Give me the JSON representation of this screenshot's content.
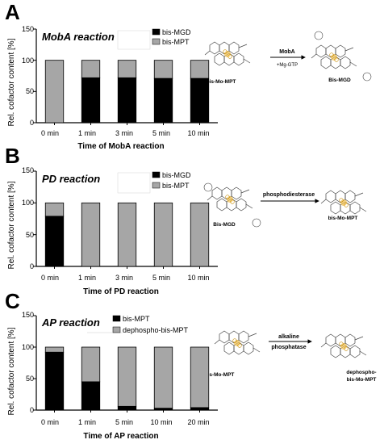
{
  "colors": {
    "bar_dark": "#000000",
    "bar_light": "#a6a6a6",
    "axis": "#000000"
  },
  "y_axis_label": "Rel. cofactor content [%]",
  "chart_data": [
    {
      "letter": "A",
      "type": "bar",
      "stacked": true,
      "title": "MobA reaction",
      "xlabel": "Time of MobA reaction",
      "ylabel": "Rel. cofactor content [%]",
      "ylim": [
        0,
        150
      ],
      "yticks": [
        "0",
        "50",
        "100",
        "150"
      ],
      "legend_position": "top-right",
      "categories": [
        "0 min",
        "1 min",
        "3 min",
        "5 min",
        "10 min"
      ],
      "series": [
        {
          "name": "bis-MGD",
          "values": [
            0,
            72,
            72,
            71,
            71
          ]
        },
        {
          "name": "bis-MPT",
          "values": [
            100,
            28,
            28,
            29,
            29
          ]
        }
      ]
    },
    {
      "letter": "B",
      "type": "bar",
      "stacked": true,
      "title": "PD reaction",
      "xlabel": "Time of PD reaction",
      "ylabel": "Rel. cofactor content [%]",
      "ylim": [
        0,
        150
      ],
      "yticks": [
        "0",
        "50",
        "100",
        "150"
      ],
      "legend_position": "top-right",
      "categories": [
        "0 min",
        "1 min",
        "3 min",
        "5 min",
        "10 min"
      ],
      "series": [
        {
          "name": "bis-MGD",
          "values": [
            79,
            0,
            0,
            0,
            0
          ]
        },
        {
          "name": "bis-MPT",
          "values": [
            21,
            100,
            100,
            100,
            100
          ]
        }
      ]
    },
    {
      "letter": "C",
      "type": "bar",
      "stacked": true,
      "title": "AP reaction",
      "xlabel": "Time of AP reaction",
      "ylabel": "Rel. cofactor content [%]",
      "ylim": [
        0,
        150
      ],
      "yticks": [
        "0",
        "50",
        "100",
        "150"
      ],
      "legend_position": "top-right",
      "categories": [
        "0 min",
        "1 min",
        "5 min",
        "10 min",
        "20 min"
      ],
      "series": [
        {
          "name": "bis-MPT",
          "values": [
            92,
            45,
            6,
            3,
            4
          ]
        },
        {
          "name": "dephospho-bis-MPT",
          "values": [
            8,
            55,
            94,
            97,
            96
          ]
        }
      ]
    }
  ],
  "schemes": [
    {
      "left": "bis-Mo-MPT",
      "arrow_label": "MobA",
      "arrow_sub": "+Mg-GTP",
      "right": "Bis-MGD"
    },
    {
      "left": "Bis-MGD",
      "arrow_label": "phosphodiesterase",
      "arrow_sub": "",
      "right": "bis-Mo-MPT"
    },
    {
      "left": "bis-Mo-MPT",
      "arrow_label": "alkaline",
      "arrow_sub": "phosphatase",
      "right": "dephospho-",
      "right2": "bis-Mo-MPT"
    }
  ]
}
